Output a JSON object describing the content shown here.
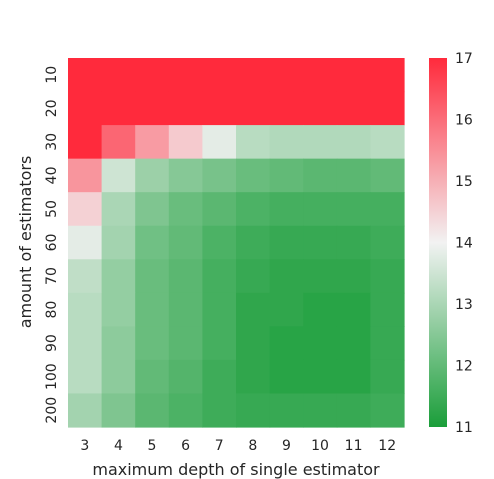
{
  "chart_data": {
    "type": "heatmap",
    "xlabel": "maximum depth of single estimator",
    "ylabel": "amount of estimators",
    "x_categories": [
      "3",
      "4",
      "5",
      "6",
      "7",
      "8",
      "9",
      "10",
      "11",
      "12"
    ],
    "y_categories": [
      "10",
      "20",
      "30",
      "40",
      "50",
      "60",
      "70",
      "80",
      "90",
      "100",
      "200"
    ],
    "colorbar": {
      "min": 11,
      "max": 17,
      "ticks": [
        "11",
        "12",
        "13",
        "14",
        "15",
        "16",
        "17"
      ],
      "colors": {
        "low": "#1a9e3a",
        "mid": "#f2f2f2",
        "high": "#ff2a3c"
      }
    },
    "values": [
      [
        17.0,
        17.0,
        17.0,
        17.0,
        17.0,
        17.0,
        17.0,
        17.0,
        17.0,
        17.0
      ],
      [
        17.0,
        17.0,
        17.0,
        17.0,
        17.0,
        17.0,
        17.0,
        17.0,
        17.0,
        17.0
      ],
      [
        17.0,
        16.1,
        15.3,
        14.6,
        13.8,
        13.2,
        13.1,
        13.1,
        13.1,
        13.2
      ],
      [
        15.4,
        13.5,
        12.8,
        12.5,
        12.3,
        12.1,
        12.0,
        11.9,
        11.9,
        12.0
      ],
      [
        14.5,
        13.0,
        12.4,
        12.1,
        11.9,
        11.7,
        11.6,
        11.6,
        11.6,
        11.6
      ],
      [
        13.8,
        12.9,
        12.2,
        12.0,
        11.7,
        11.5,
        11.4,
        11.4,
        11.4,
        11.5
      ],
      [
        13.3,
        12.7,
        12.1,
        11.9,
        11.6,
        11.4,
        11.3,
        11.3,
        11.3,
        11.4
      ],
      [
        13.2,
        12.7,
        12.1,
        11.9,
        11.6,
        11.3,
        11.3,
        11.2,
        11.2,
        11.4
      ],
      [
        13.2,
        12.6,
        12.1,
        11.9,
        11.6,
        11.3,
        11.2,
        11.2,
        11.2,
        11.4
      ],
      [
        13.2,
        12.6,
        12.0,
        11.8,
        11.5,
        11.3,
        11.2,
        11.2,
        11.2,
        11.4
      ],
      [
        12.9,
        12.4,
        11.9,
        11.7,
        11.5,
        11.4,
        11.4,
        11.4,
        11.4,
        11.5
      ]
    ]
  }
}
